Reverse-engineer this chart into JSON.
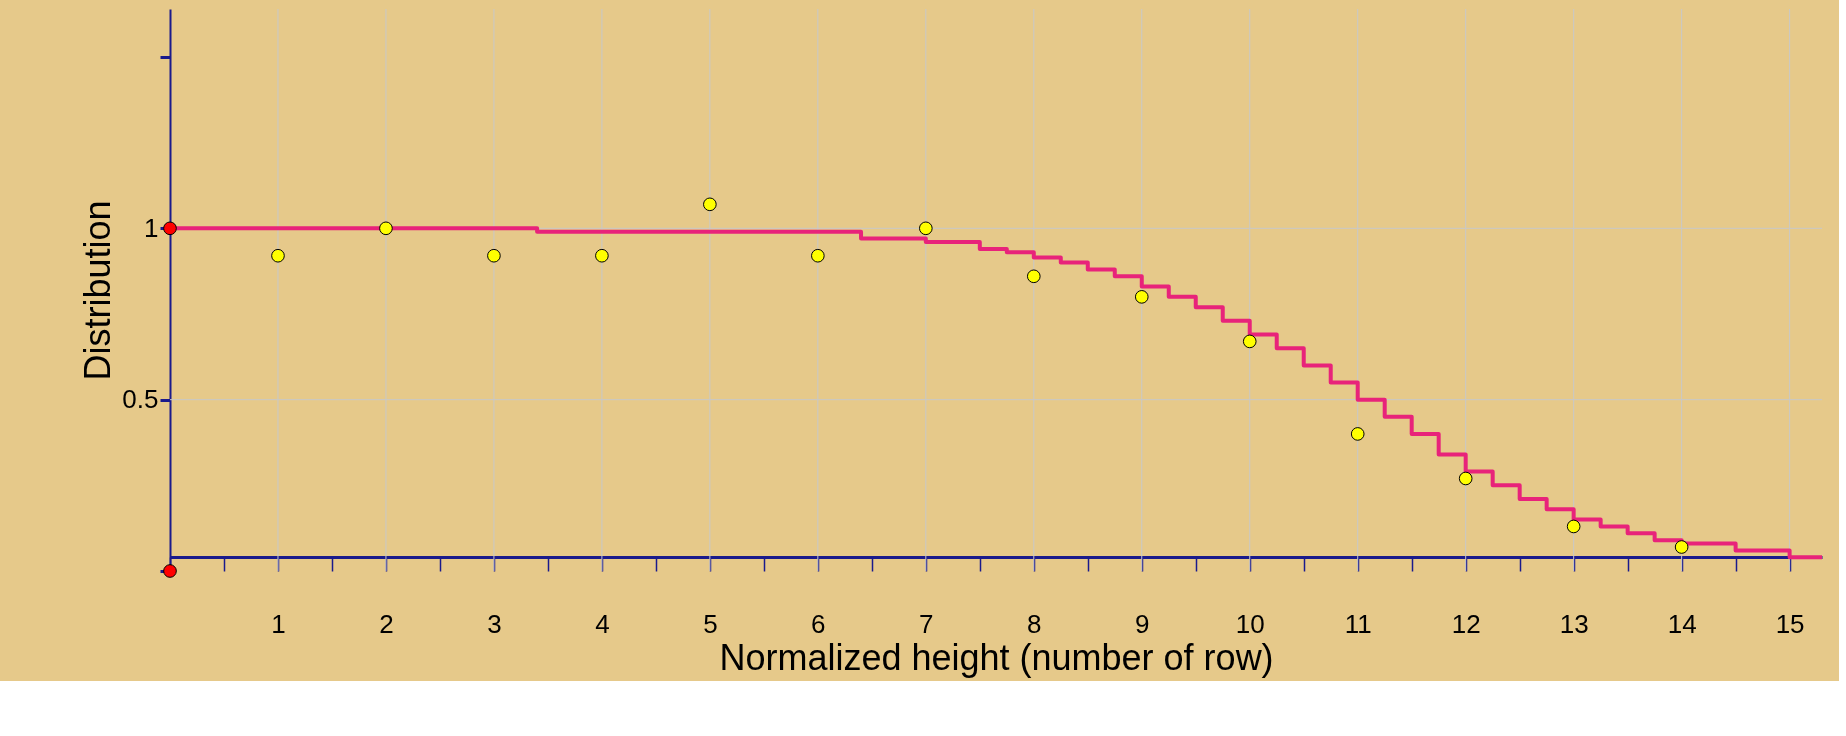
{
  "chart_data": {
    "type": "step",
    "xlabel": "Normalized height (number of row)",
    "ylabel": "Distribution",
    "xlim": [
      0,
      15.3
    ],
    "ylim": [
      0,
      1.64
    ],
    "xticks": [
      {
        "value": 0,
        "label": null
      },
      {
        "value": 0.5,
        "label": null
      },
      1,
      {
        "value": 1.5,
        "label": null
      },
      2,
      {
        "value": 2.5,
        "label": null
      },
      3,
      {
        "value": 3.5,
        "label": null
      },
      4,
      {
        "value": 4.5,
        "label": null
      },
      5,
      {
        "value": 5.5,
        "label": null
      },
      6,
      {
        "value": 6.5,
        "label": null
      },
      7,
      {
        "value": 7.5,
        "label": null
      },
      8,
      {
        "value": 8.5,
        "label": null
      },
      9,
      {
        "value": 9.5,
        "label": null
      },
      10,
      {
        "value": 10.5,
        "label": null
      },
      11,
      {
        "value": 11.5,
        "label": null
      },
      12,
      {
        "value": 12.5,
        "label": null
      },
      13,
      {
        "value": 13.5,
        "label": null
      },
      14,
      {
        "value": 14.5,
        "label": null
      },
      15
    ],
    "yticks": [
      {
        "value": 0,
        "label": null
      },
      0.5,
      1,
      {
        "value": 1.5,
        "label": null
      }
    ],
    "grid": true,
    "series": [
      {
        "color": "#e8237a",
        "x": [
          0,
          3.4,
          6.4,
          7.0,
          7.5,
          7.75,
          8,
          8.25,
          8.5,
          8.75,
          9,
          9.25,
          9.5,
          9.75,
          10,
          10.25,
          10.5,
          10.75,
          11,
          11.25,
          11.5,
          11.75,
          12,
          12.25,
          12.5,
          12.75,
          13,
          13.25,
          13.5,
          13.75,
          14,
          14.5,
          15,
          15.3
        ],
        "values": [
          1,
          0.99,
          0.97,
          0.96,
          0.94,
          0.93,
          0.915,
          0.9,
          0.88,
          0.86,
          0.83,
          0.8,
          0.77,
          0.73,
          0.69,
          0.65,
          0.6,
          0.55,
          0.5,
          0.45,
          0.4,
          0.34,
          0.29,
          0.25,
          0.21,
          0.18,
          0.15,
          0.13,
          0.11,
          0.09,
          0.08,
          0.06,
          0.04,
          0.04
        ]
      },
      {
        "type": "scatter",
        "color": "#ffff00",
        "x": [
          1,
          2,
          3,
          4,
          5,
          6,
          7,
          8,
          9,
          10,
          11,
          12,
          13,
          14
        ],
        "values": [
          0.92,
          1.0,
          0.92,
          0.92,
          1.07,
          0.92,
          1.0,
          0.86,
          0.8,
          0.67,
          0.4,
          0.27,
          0.13,
          0.07
        ]
      },
      {
        "type": "scatter",
        "color": "#ff0000",
        "x": [
          0,
          0
        ],
        "values": [
          1,
          0
        ]
      }
    ]
  }
}
